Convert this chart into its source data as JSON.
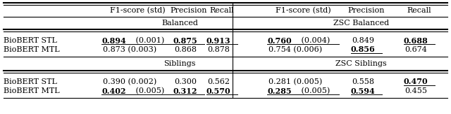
{
  "col_headers": [
    "F1-score (std)",
    "Precision",
    "Recall",
    "F1-score (std)",
    "Precision",
    "Recall"
  ],
  "rows": [
    {
      "label": "BioBERT STL",
      "cells": [
        {
          "parts": [
            {
              "text": "0.894",
              "bold": true
            },
            {
              "text": " (0.001)",
              "bold": false
            }
          ],
          "underline": true
        },
        {
          "parts": [
            {
              "text": "0.875",
              "bold": true
            }
          ],
          "underline": true
        },
        {
          "parts": [
            {
              "text": "0.913",
              "bold": true
            }
          ],
          "underline": true
        },
        {
          "parts": [
            {
              "text": "0.760",
              "bold": true
            },
            {
              "text": " (0.004)",
              "bold": false
            }
          ],
          "underline": true
        },
        {
          "parts": [
            {
              "text": "0.849",
              "bold": false
            }
          ],
          "underline": false
        },
        {
          "parts": [
            {
              "text": "0.688",
              "bold": true
            }
          ],
          "underline": true
        }
      ]
    },
    {
      "label": "BioBERT MTL",
      "cells": [
        {
          "parts": [
            {
              "text": "0.873 (0.003)",
              "bold": false
            }
          ],
          "underline": false
        },
        {
          "parts": [
            {
              "text": "0.868",
              "bold": false
            }
          ],
          "underline": false
        },
        {
          "parts": [
            {
              "text": "0.878",
              "bold": false
            }
          ],
          "underline": false
        },
        {
          "parts": [
            {
              "text": "0.754 (0.006)",
              "bold": false
            }
          ],
          "underline": false
        },
        {
          "parts": [
            {
              "text": "0.856",
              "bold": true
            }
          ],
          "underline": true
        },
        {
          "parts": [
            {
              "text": "0.674",
              "bold": false
            }
          ],
          "underline": false
        }
      ]
    },
    {
      "label": "BioBERT STL",
      "cells": [
        {
          "parts": [
            {
              "text": "0.390 (0.002)",
              "bold": false
            }
          ],
          "underline": false
        },
        {
          "parts": [
            {
              "text": "0.300",
              "bold": false
            }
          ],
          "underline": false
        },
        {
          "parts": [
            {
              "text": "0.562",
              "bold": false
            }
          ],
          "underline": false
        },
        {
          "parts": [
            {
              "text": "0.281 (0.005)",
              "bold": false
            }
          ],
          "underline": false
        },
        {
          "parts": [
            {
              "text": "0.558",
              "bold": false
            }
          ],
          "underline": false
        },
        {
          "parts": [
            {
              "text": "0.470",
              "bold": true
            }
          ],
          "underline": true
        }
      ]
    },
    {
      "label": "BioBERT MTL",
      "cells": [
        {
          "parts": [
            {
              "text": "0.402",
              "bold": true
            },
            {
              "text": " (0.005)",
              "bold": false
            }
          ],
          "underline": true
        },
        {
          "parts": [
            {
              "text": "0.312",
              "bold": true
            }
          ],
          "underline": true
        },
        {
          "parts": [
            {
              "text": "0.570",
              "bold": true
            }
          ],
          "underline": true
        },
        {
          "parts": [
            {
              "text": "0.285",
              "bold": true
            },
            {
              "text": " (0.005)",
              "bold": false
            }
          ],
          "underline": true
        },
        {
          "parts": [
            {
              "text": "0.594",
              "bold": true
            }
          ],
          "underline": true
        },
        {
          "parts": [
            {
              "text": "0.455",
              "bold": false
            }
          ],
          "underline": false
        }
      ]
    }
  ],
  "bg_color": "#ffffff",
  "font_size": 8.0
}
